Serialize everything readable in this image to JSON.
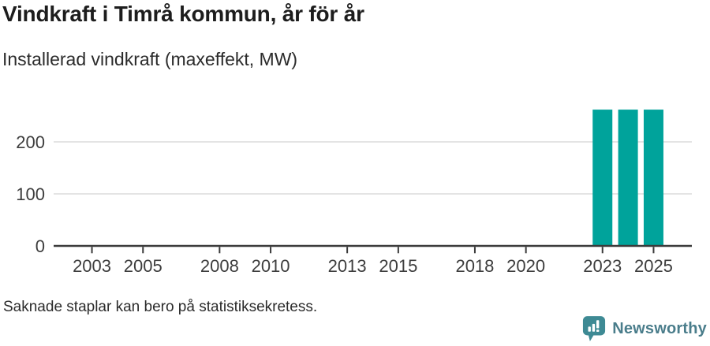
{
  "branding": {
    "logo_text": "Newsworthy",
    "logo_icon": "newsworthy-speech-bubble-barchart-icon"
  },
  "colors": {
    "bar": "#00a39b",
    "axis": "#3a3a3a",
    "grid": "#e4e4e4",
    "tick_label": "#3d3d3d",
    "title_text": "#1d1d1d",
    "body_text": "#2b2b2b",
    "logo_icon": "#3e8a94",
    "logo_text": "#4a7d8b"
  },
  "chart_data": {
    "type": "bar",
    "title": "Vindkraft i Timrå kommun, år för år",
    "subtitle": "Installerad vindkraft (maxeffekt, MW)",
    "note": "Saknade staplar kan bero på statistiksekretess.",
    "ylabel": "MW",
    "xlabel": "",
    "grid": true,
    "legend_position": "none",
    "x": [
      2002,
      2003,
      2004,
      2005,
      2006,
      2007,
      2008,
      2009,
      2010,
      2011,
      2012,
      2013,
      2014,
      2015,
      2016,
      2017,
      2018,
      2019,
      2020,
      2021,
      2022,
      2023,
      2024,
      2025,
      2026
    ],
    "values": [
      null,
      null,
      null,
      null,
      null,
      null,
      null,
      null,
      null,
      null,
      null,
      null,
      null,
      null,
      null,
      null,
      null,
      null,
      null,
      null,
      null,
      262,
      262,
      262,
      null
    ],
    "x_tick_labels": [
      2003,
      2005,
      2008,
      2010,
      2013,
      2015,
      2018,
      2020,
      2023,
      2025
    ],
    "y_ticks": [
      0,
      100,
      200
    ],
    "ylim": [
      0,
      270
    ]
  }
}
